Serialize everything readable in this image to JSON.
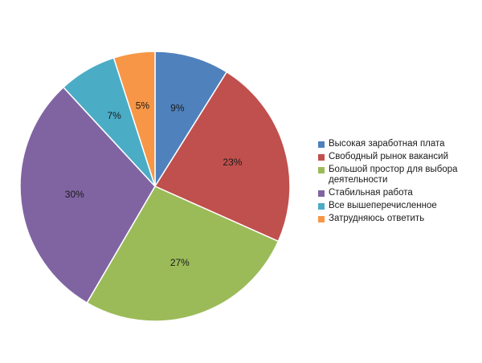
{
  "chart_data": {
    "type": "pie",
    "title": "",
    "legend_position": "right",
    "slices": [
      {
        "label": "Высокая заработная плата",
        "value": 9,
        "display": "9%",
        "color": "#4F81BD"
      },
      {
        "label": "Свободный рынок вакансий",
        "value": 23,
        "display": "23%",
        "color": "#C0504D"
      },
      {
        "label": "Большой простор для выбора деятельности",
        "value": 27,
        "display": "27%",
        "color": "#9BBB59"
      },
      {
        "label": "Стабильная работа",
        "value": 30,
        "display": "30%",
        "color": "#8064A2"
      },
      {
        "label": "Все вышеперечисленное",
        "value": 7,
        "display": "7%",
        "color": "#4BACC6"
      },
      {
        "label": "Затрудняюсь ответить",
        "value": 5,
        "display": "5%",
        "color": "#F79646"
      }
    ]
  }
}
